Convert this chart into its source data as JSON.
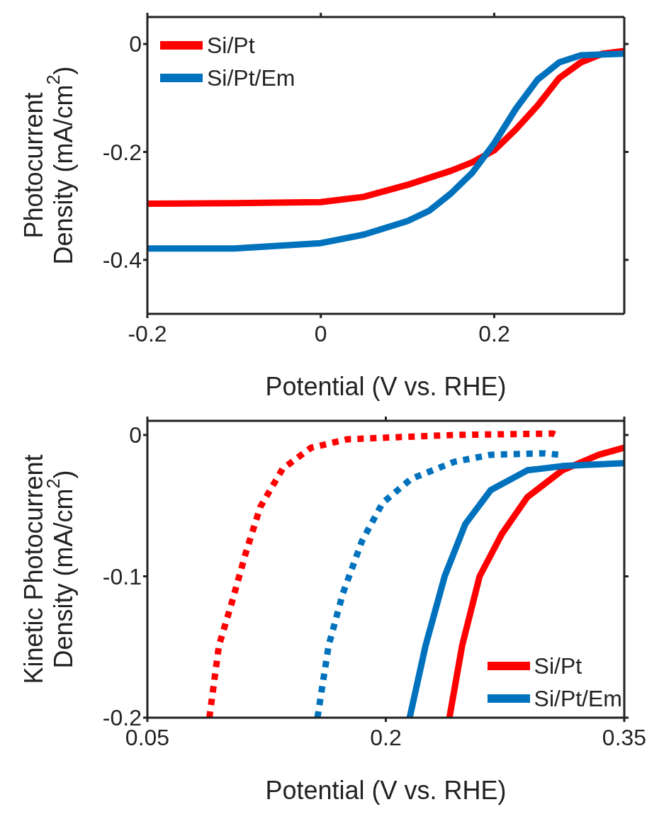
{
  "chart_data": [
    {
      "type": "line",
      "xlabel": "Potential (V vs. RHE)",
      "ylabel": "Photocurrent\nDensity (mA/cm$^{2}$)",
      "xlim": [
        -0.2,
        0.35
      ],
      "xticks": [
        -0.2,
        0,
        0.2
      ],
      "ylim": [
        -0.5,
        0.05
      ],
      "yticks": [
        0,
        -0.2,
        -0.4
      ],
      "legend": "top left",
      "line_style": "solid",
      "series": [
        {
          "name": "Si/Pt",
          "color": "#ff0000",
          "x": [
            -0.2,
            -0.1,
            0,
            0.05,
            0.1,
            0.15,
            0.175,
            0.2,
            0.225,
            0.25,
            0.275,
            0.3,
            0.325,
            0.35
          ],
          "values": [
            -0.296,
            -0.295,
            -0.293,
            -0.283,
            -0.261,
            -0.235,
            -0.219,
            -0.197,
            -0.158,
            -0.114,
            -0.063,
            -0.034,
            -0.018,
            -0.013
          ]
        },
        {
          "name": "Si/Pt/Em",
          "color": "#0072bd",
          "x": [
            -0.2,
            -0.1,
            0,
            0.05,
            0.1,
            0.125,
            0.15,
            0.175,
            0.2,
            0.225,
            0.25,
            0.275,
            0.3,
            0.35
          ],
          "values": [
            -0.379,
            -0.379,
            -0.369,
            -0.353,
            -0.328,
            -0.309,
            -0.277,
            -0.238,
            -0.184,
            -0.12,
            -0.066,
            -0.034,
            -0.021,
            -0.018
          ]
        }
      ]
    },
    {
      "type": "line",
      "xlabel": "Potential (V vs. RHE)",
      "ylabel": "Kinetic Photocurrent\nDensity (mA/cm$^{2}$)",
      "xlim": [
        0.05,
        0.35
      ],
      "xticks": [
        0.05,
        0.2,
        0.35
      ],
      "ylim": [
        -0.2,
        0.01
      ],
      "yticks": [
        0,
        -0.1,
        -0.2
      ],
      "legend": "bottom right",
      "series": [
        {
          "color": "#ff0000",
          "line_style": "dotted",
          "x": [
            0.089,
            0.095,
            0.103,
            0.112,
            0.121,
            0.135,
            0.153,
            0.176,
            0.198,
            0.243,
            0.305,
            0.309
          ],
          "values": [
            -0.2,
            -0.149,
            -0.119,
            -0.083,
            -0.051,
            -0.024,
            -0.009,
            -0.003,
            -0.002,
            0,
            0.001,
            -0.001
          ]
        },
        {
          "color": "#0072bd",
          "line_style": "dotted",
          "x": [
            0.157,
            0.164,
            0.173,
            0.185,
            0.198,
            0.216,
            0.243,
            0.266,
            0.3,
            0.309
          ],
          "values": [
            -0.2,
            -0.149,
            -0.112,
            -0.075,
            -0.048,
            -0.031,
            -0.019,
            -0.014,
            -0.013,
            -0.014
          ]
        },
        {
          "name": "Si/Pt",
          "color": "#ff0000",
          "line_style": "solid",
          "x": [
            0.24,
            0.248,
            0.259,
            0.273,
            0.289,
            0.311,
            0.334,
            0.35
          ],
          "values": [
            -0.2,
            -0.149,
            -0.1,
            -0.07,
            -0.044,
            -0.025,
            -0.014,
            -0.009
          ]
        },
        {
          "name": "Si/Pt/Em",
          "color": "#0072bd",
          "line_style": "solid",
          "x": [
            0.215,
            0.225,
            0.237,
            0.25,
            0.266,
            0.289,
            0.311,
            0.35
          ],
          "values": [
            -0.2,
            -0.149,
            -0.1,
            -0.063,
            -0.039,
            -0.025,
            -0.022,
            -0.02
          ]
        }
      ]
    }
  ]
}
